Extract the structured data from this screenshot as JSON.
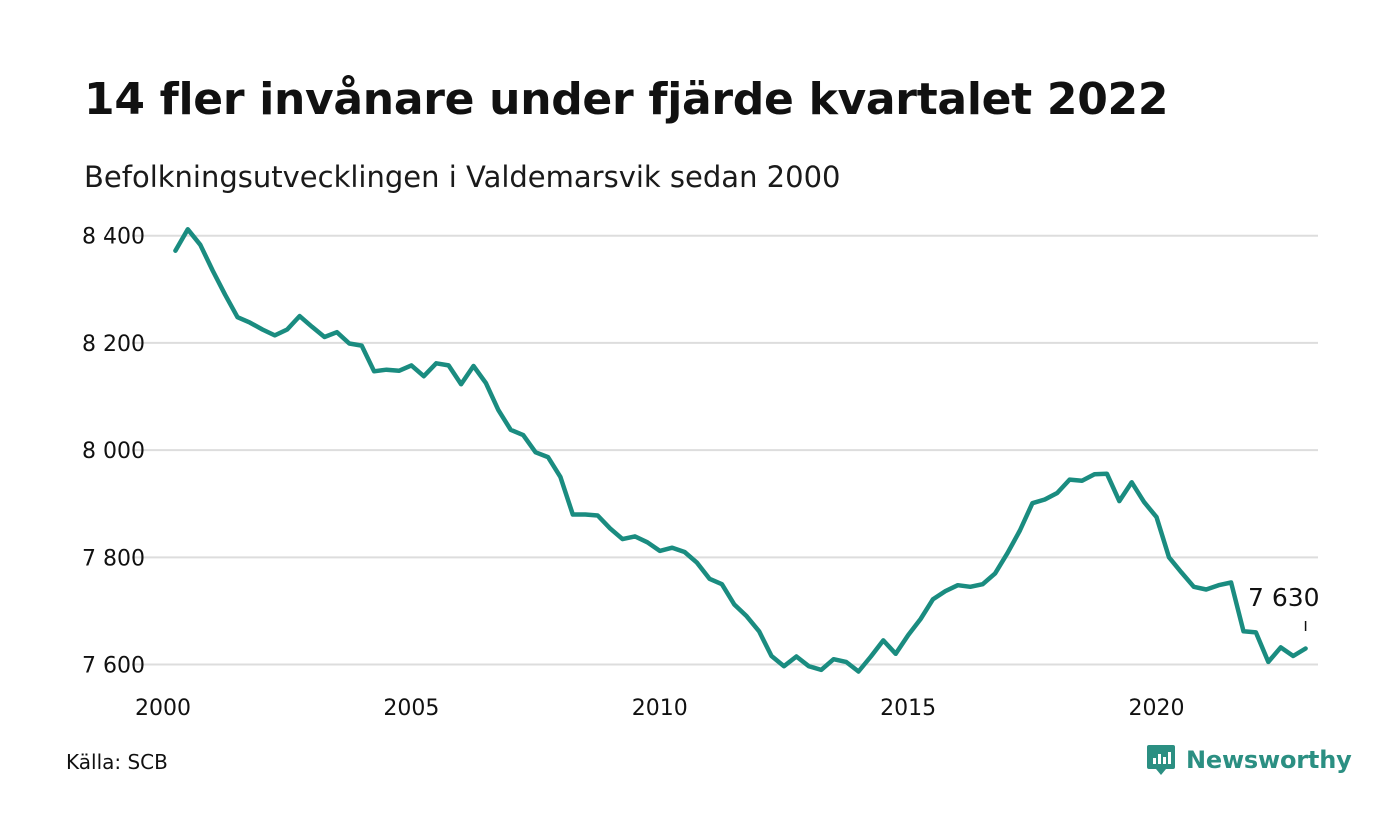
{
  "header": {
    "title": "14 fler invånare under fjärde kvartalet 2022",
    "subtitle": "Befolkningsutvecklingen i Valdemarsvik sedan 2000"
  },
  "footer": {
    "source": "Källa: SCB",
    "brand": "Newsworthy",
    "brand_icon": "newsworthy-logo-icon"
  },
  "colors": {
    "line": "#1a8c80",
    "grid": "#dddddd",
    "brand": "#2b8f82"
  },
  "chart_data": {
    "type": "line",
    "title": "14 fler invånare under fjärde kvartalet 2022",
    "subtitle": "Befolkningsutvecklingen i Valdemarsvik sedan 2000",
    "xlabel": "",
    "ylabel": "",
    "grid": true,
    "ylim": [
      7560,
      8420
    ],
    "xlim": [
      2000.0,
      2023.25
    ],
    "y_ticks": [
      7600,
      7800,
      8000,
      8200,
      8400
    ],
    "y_tick_labels": [
      "7 600",
      "7 800",
      "8 000",
      "8 200",
      "8 400"
    ],
    "x_ticks": [
      2000,
      2005,
      2010,
      2015,
      2020
    ],
    "x_tick_labels": [
      "2000",
      "2005",
      "2010",
      "2015",
      "2020"
    ],
    "end_label": "7 630",
    "series": [
      {
        "x": [
          2000.25,
          2000.5,
          2000.75,
          2001,
          2001.25,
          2001.5,
          2001.75,
          2002,
          2002.25,
          2002.5,
          2002.75,
          2003,
          2003.25,
          2003.5,
          2003.75,
          2004,
          2004.25,
          2004.5,
          2004.75,
          2005,
          2005.25,
          2005.5,
          2005.75,
          2006,
          2006.25,
          2006.5,
          2006.75,
          2007,
          2007.25,
          2007.5,
          2007.75,
          2008,
          2008.25,
          2008.5,
          2008.75,
          2009,
          2009.25,
          2009.5,
          2009.75,
          2010,
          2010.25,
          2010.5,
          2010.75,
          2011,
          2011.25,
          2011.5,
          2011.75,
          2012,
          2012.25,
          2012.5,
          2012.75,
          2013,
          2013.25,
          2013.5,
          2013.75,
          2014,
          2014.25,
          2014.5,
          2014.75,
          2015,
          2015.25,
          2015.5,
          2015.75,
          2016,
          2016.25,
          2016.5,
          2016.75,
          2017,
          2017.25,
          2017.5,
          2017.75,
          2018,
          2018.25,
          2018.5,
          2018.75,
          2019,
          2019.25,
          2019.5,
          2019.75,
          2020,
          2020.25,
          2020.5,
          2020.75,
          2021,
          2021.25,
          2021.5,
          2021.75,
          2022,
          2022.25,
          2022.5,
          2022.75,
          2023
        ],
        "values": [
          8372,
          8412,
          8383,
          8335,
          8290,
          8248,
          8238,
          8225,
          8214,
          8225,
          8250,
          8230,
          8211,
          8220,
          8199,
          8195,
          8147,
          8150,
          8148,
          8158,
          8138,
          8162,
          8158,
          8123,
          8157,
          8125,
          8075,
          8038,
          8028,
          7996,
          7987,
          7950,
          7880,
          7880,
          7878,
          7854,
          7834,
          7839,
          7828,
          7812,
          7818,
          7810,
          7790,
          7760,
          7750,
          7712,
          7690,
          7662,
          7616,
          7597,
          7615,
          7597,
          7590,
          7610,
          7605,
          7587,
          7615,
          7645,
          7620,
          7655,
          7685,
          7722,
          7737,
          7748,
          7745,
          7750,
          7770,
          7808,
          7850,
          7901,
          7908,
          7920,
          7945,
          7943,
          7955,
          7956,
          7905,
          7940,
          7903,
          7875,
          7800,
          7772,
          7745,
          7740,
          7748,
          7753,
          7662,
          7660,
          7605,
          7632,
          7616,
          7630
        ]
      }
    ]
  }
}
